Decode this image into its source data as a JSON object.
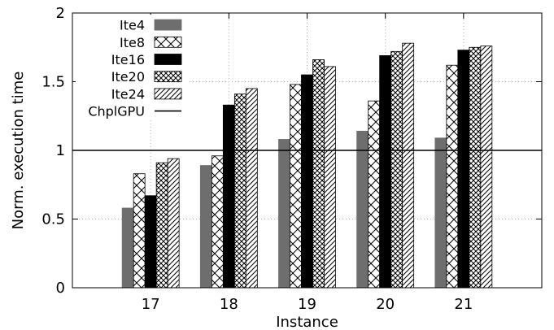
{
  "chart_data": {
    "type": "bar",
    "xlabel": "Instance",
    "ylabel": "Norm. execution time",
    "categories": [
      "17",
      "18",
      "19",
      "20",
      "21"
    ],
    "ylim": [
      0,
      2
    ],
    "yticks": [
      "0",
      "0.5",
      "1",
      "1.5",
      "2"
    ],
    "grid": true,
    "legend_position": "top-left",
    "series": [
      {
        "name": "Ite4",
        "pattern": "solid-gray",
        "values": [
          0.58,
          0.89,
          1.08,
          1.14,
          1.09
        ]
      },
      {
        "name": "Ite8",
        "pattern": "cross-hatch",
        "values": [
          0.83,
          0.96,
          1.48,
          1.36,
          1.62
        ]
      },
      {
        "name": "Ite16",
        "pattern": "solid-black",
        "values": [
          0.67,
          1.33,
          1.55,
          1.69,
          1.73
        ]
      },
      {
        "name": "Ite20",
        "pattern": "fine-crosshatch",
        "values": [
          0.91,
          1.41,
          1.66,
          1.72,
          1.75
        ]
      },
      {
        "name": "Ite24",
        "pattern": "diagonal",
        "values": [
          0.94,
          1.45,
          1.61,
          1.78,
          1.76
        ]
      }
    ],
    "reference_line": {
      "name": "ChplGPU",
      "value": 1.0
    }
  }
}
